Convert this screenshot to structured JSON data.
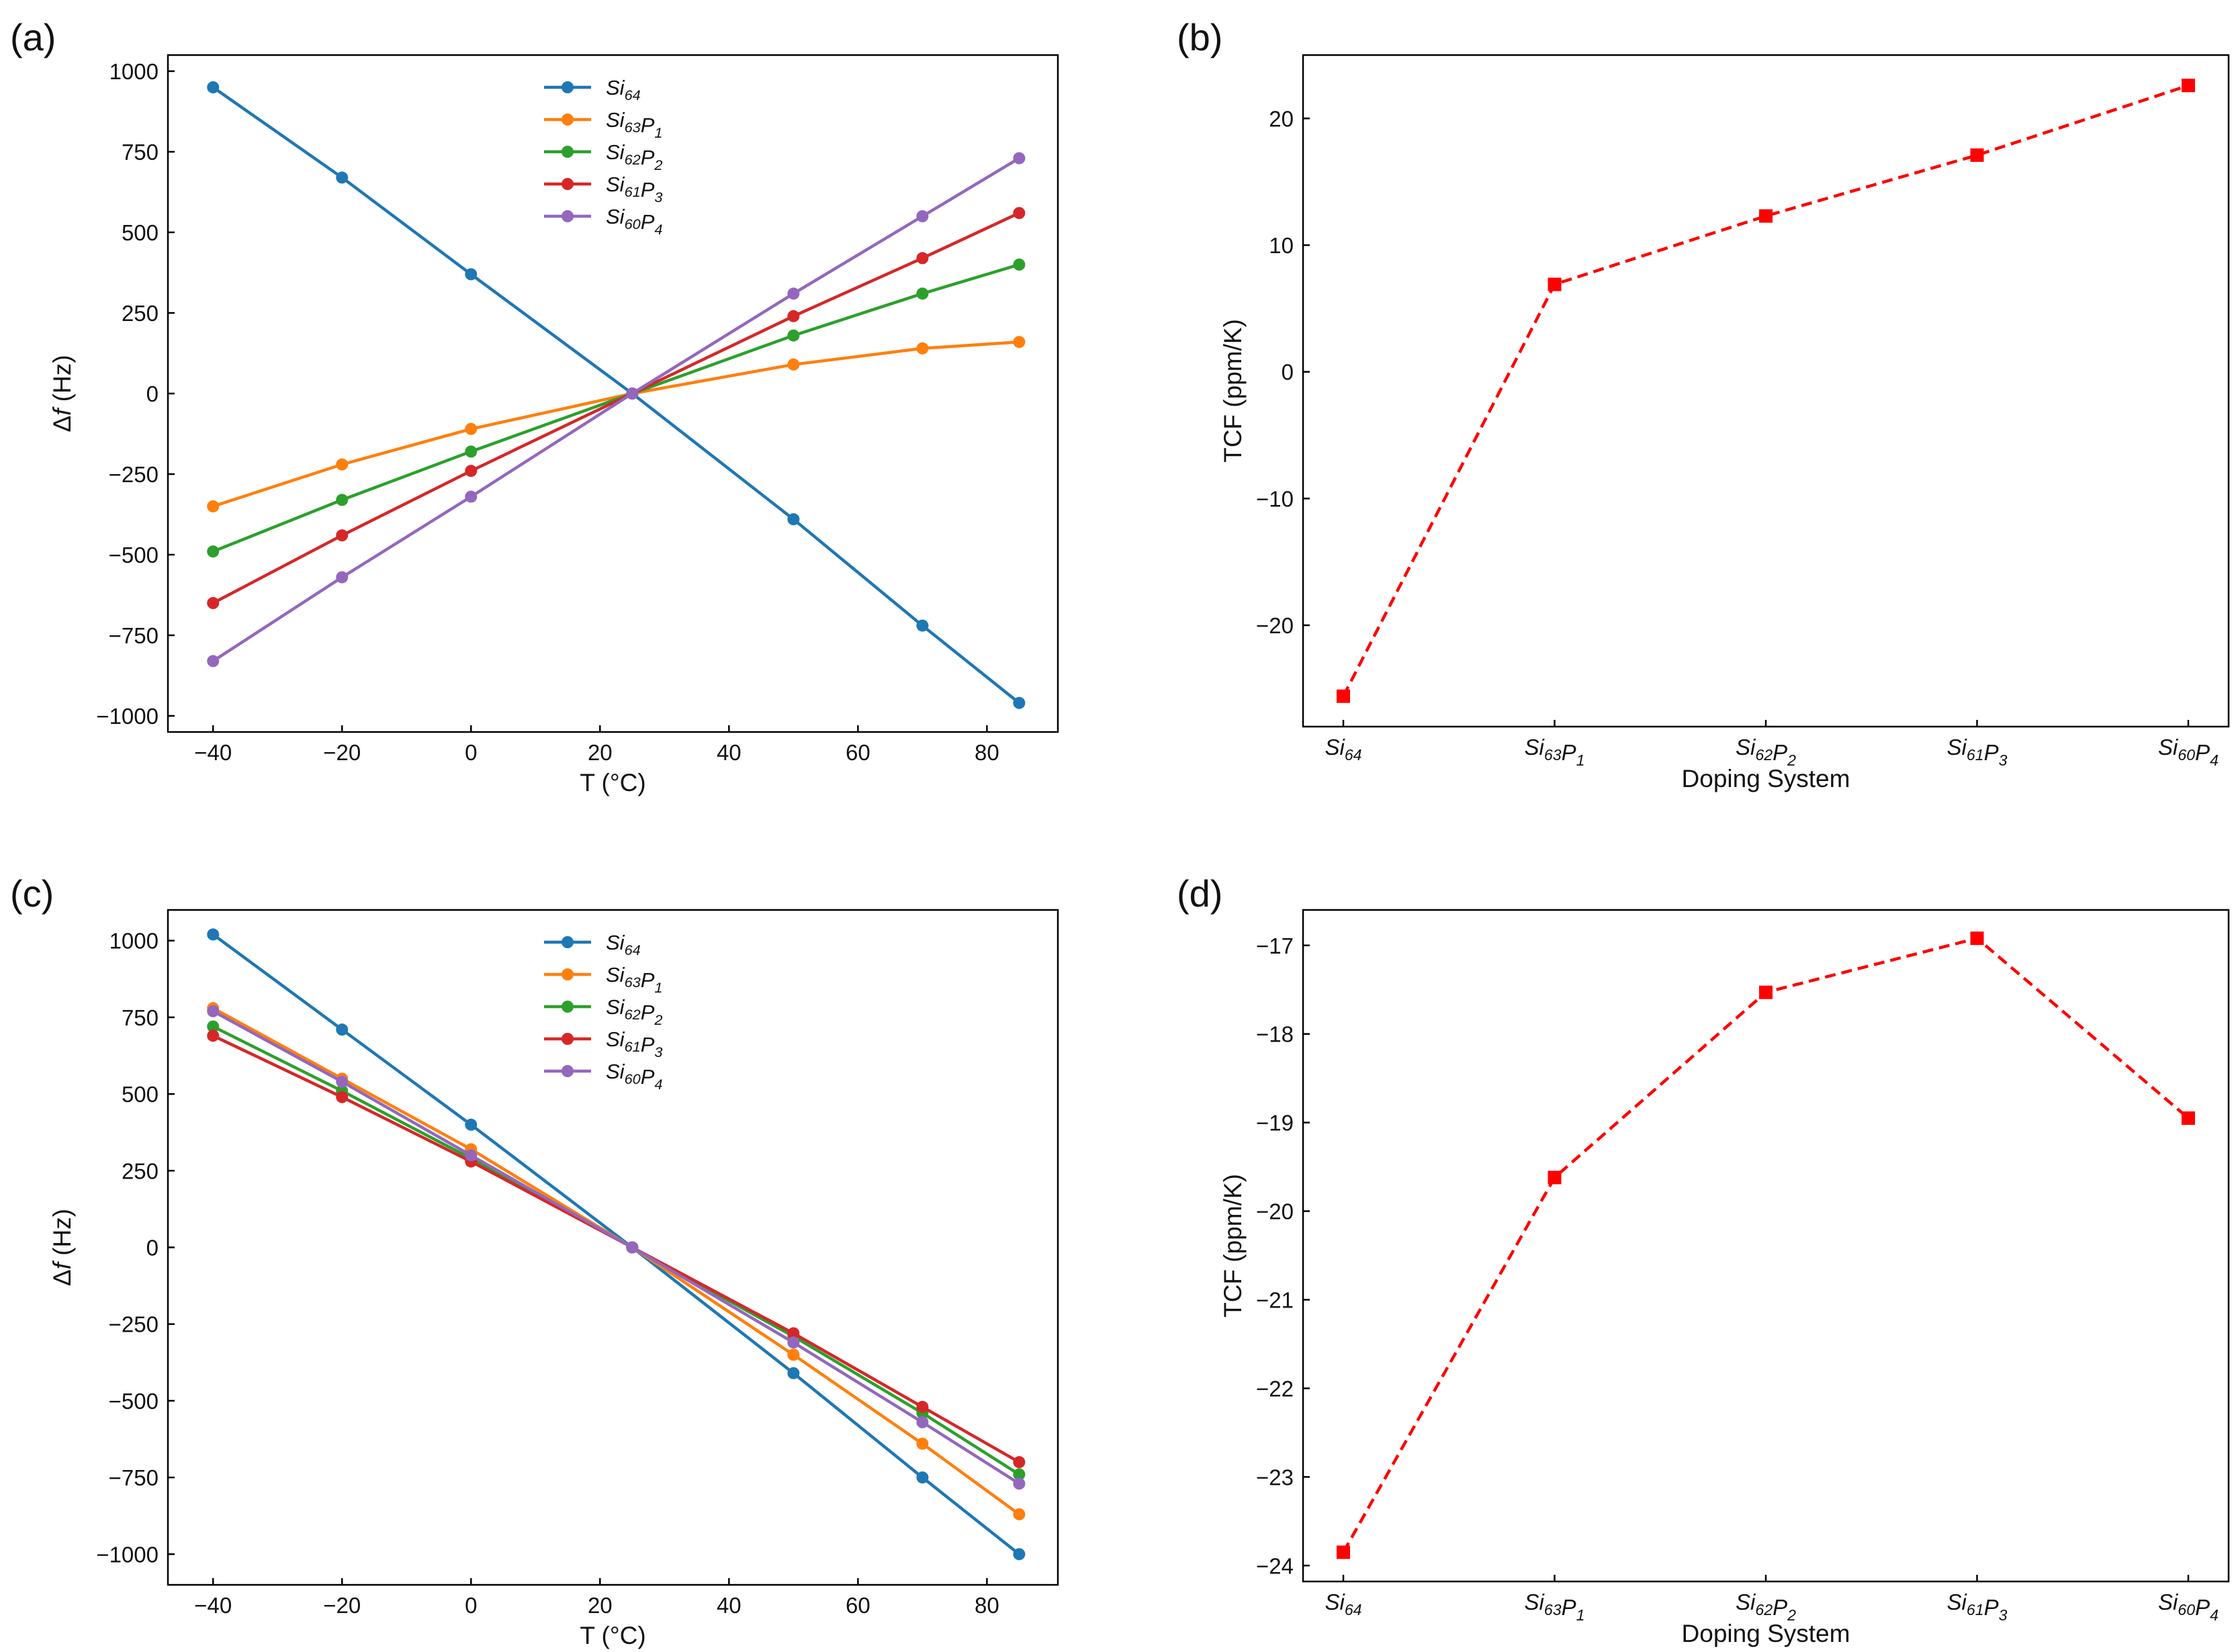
{
  "figure": {
    "colors": {
      "Si64": "#1f77b4",
      "Si63P1": "#ff7f0e",
      "Si62P2": "#2ca02c",
      "Si61P3": "#d62728",
      "Si60P4": "#9467bd",
      "tcf": "#ff0000"
    }
  },
  "chart_data": [
    {
      "id": "a",
      "panel_label": "(a)",
      "type": "line",
      "xlabel": "T (°C)",
      "ylabel_prefix": "Δ",
      "ylabel_var": "f",
      "ylabel_suffix": " (Hz)",
      "xlim": [
        -47,
        91
      ],
      "ylim": [
        -1050,
        1050
      ],
      "xticks": [
        -40,
        -20,
        0,
        20,
        40,
        60,
        80
      ],
      "yticks": [
        -1000,
        -750,
        -500,
        -250,
        0,
        250,
        500,
        750,
        1000
      ],
      "x": [
        -40,
        -20,
        0,
        25,
        50,
        70,
        85
      ],
      "legend_position": "upper-center",
      "series": [
        {
          "key": "Si64",
          "name": "Si64",
          "base": "Si",
          "parts": [
            [
              "Si",
              "64"
            ]
          ],
          "values": [
            950,
            670,
            370,
            0,
            -390,
            -720,
            -960
          ]
        },
        {
          "key": "Si63P1",
          "name": "Si63P1",
          "parts": [
            [
              "Si",
              "63"
            ],
            [
              "P",
              "1"
            ]
          ],
          "values": [
            -350,
            -220,
            -110,
            0,
            90,
            140,
            160
          ]
        },
        {
          "key": "Si62P2",
          "name": "Si62P2",
          "parts": [
            [
              "Si",
              "62"
            ],
            [
              "P",
              "2"
            ]
          ],
          "values": [
            -490,
            -330,
            -180,
            0,
            180,
            310,
            400
          ]
        },
        {
          "key": "Si61P3",
          "name": "Si61P3",
          "parts": [
            [
              "Si",
              "61"
            ],
            [
              "P",
              "3"
            ]
          ],
          "values": [
            -650,
            -440,
            -240,
            0,
            240,
            420,
            560
          ]
        },
        {
          "key": "Si60P4",
          "name": "Si60P4",
          "parts": [
            [
              "Si",
              "60"
            ],
            [
              "P",
              "4"
            ]
          ],
          "values": [
            -830,
            -570,
            -320,
            0,
            310,
            550,
            730
          ]
        }
      ]
    },
    {
      "id": "b",
      "panel_label": "(b)",
      "type": "line",
      "xlabel": "Doping System",
      "ylabel": "TCF (ppm/K)",
      "ylim": [
        -28,
        25
      ],
      "yticks": [
        -20,
        -10,
        0,
        10,
        20
      ],
      "categories": [
        {
          "name": "Si64",
          "parts": [
            [
              "Si",
              "64"
            ]
          ]
        },
        {
          "name": "Si63P1",
          "parts": [
            [
              "Si",
              "63"
            ],
            [
              "P",
              "1"
            ]
          ]
        },
        {
          "name": "Si62P2",
          "parts": [
            [
              "Si",
              "62"
            ],
            [
              "P",
              "2"
            ]
          ]
        },
        {
          "name": "Si61P3",
          "parts": [
            [
              "Si",
              "61"
            ],
            [
              "P",
              "3"
            ]
          ]
        },
        {
          "name": "Si60P4",
          "parts": [
            [
              "Si",
              "60"
            ],
            [
              "P",
              "4"
            ]
          ]
        }
      ],
      "values": [
        -25.6,
        6.9,
        12.3,
        17.1,
        22.6
      ],
      "style": "dashed-square-markers"
    },
    {
      "id": "c",
      "panel_label": "(c)",
      "type": "line",
      "xlabel": "T (°C)",
      "ylabel_prefix": "Δ",
      "ylabel_var": "f",
      "ylabel_suffix": " (Hz)",
      "xlim": [
        -47,
        91
      ],
      "ylim": [
        -1100,
        1100
      ],
      "xticks": [
        -40,
        -20,
        0,
        20,
        40,
        60,
        80
      ],
      "yticks": [
        -1000,
        -750,
        -500,
        -250,
        0,
        250,
        500,
        750,
        1000
      ],
      "x": [
        -40,
        -20,
        0,
        25,
        50,
        70,
        85
      ],
      "legend_position": "upper-center",
      "series": [
        {
          "key": "Si64",
          "name": "Si64",
          "parts": [
            [
              "Si",
              "64"
            ]
          ],
          "values": [
            1020,
            710,
            400,
            0,
            -410,
            -750,
            -1000
          ]
        },
        {
          "key": "Si63P1",
          "name": "Si63P1",
          "parts": [
            [
              "Si",
              "63"
            ],
            [
              "P",
              "1"
            ]
          ],
          "values": [
            780,
            550,
            320,
            0,
            -350,
            -640,
            -870
          ]
        },
        {
          "key": "Si62P2",
          "name": "Si62P2",
          "parts": [
            [
              "Si",
              "62"
            ],
            [
              "P",
              "2"
            ]
          ],
          "values": [
            720,
            510,
            290,
            0,
            -290,
            -540,
            -740
          ]
        },
        {
          "key": "Si61P3",
          "name": "Si61P3",
          "parts": [
            [
              "Si",
              "61"
            ],
            [
              "P",
              "3"
            ]
          ],
          "values": [
            690,
            490,
            280,
            0,
            -280,
            -520,
            -700
          ]
        },
        {
          "key": "Si60P4",
          "name": "Si60P4",
          "parts": [
            [
              "Si",
              "60"
            ],
            [
              "P",
              "4"
            ]
          ],
          "values": [
            770,
            540,
            300,
            0,
            -310,
            -570,
            -770
          ]
        }
      ]
    },
    {
      "id": "d",
      "panel_label": "(d)",
      "type": "line",
      "xlabel": "Doping System",
      "ylabel": "TCF (ppm/K)",
      "ylim": [
        -24.18,
        -16.6
      ],
      "yticks": [
        -24,
        -23,
        -22,
        -21,
        -20,
        -19,
        -18,
        -17
      ],
      "categories": [
        {
          "name": "Si64",
          "parts": [
            [
              "Si",
              "64"
            ]
          ]
        },
        {
          "name": "Si63P1",
          "parts": [
            [
              "Si",
              "63"
            ],
            [
              "P",
              "1"
            ]
          ]
        },
        {
          "name": "Si62P2",
          "parts": [
            [
              "Si",
              "62"
            ],
            [
              "P",
              "2"
            ]
          ]
        },
        {
          "name": "Si61P3",
          "parts": [
            [
              "Si",
              "61"
            ],
            [
              "P",
              "3"
            ]
          ]
        },
        {
          "name": "Si60P4",
          "parts": [
            [
              "Si",
              "60"
            ],
            [
              "P",
              "4"
            ]
          ]
        }
      ],
      "values": [
        -23.85,
        -19.62,
        -17.53,
        -16.92,
        -18.95
      ],
      "style": "dashed-square-markers"
    }
  ]
}
